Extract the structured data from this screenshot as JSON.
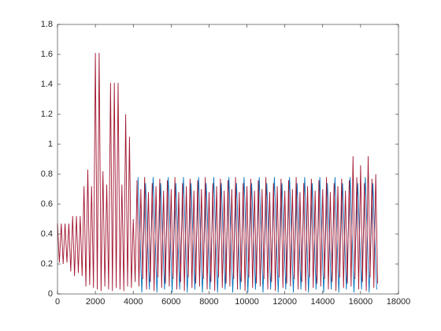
{
  "chart_data": {
    "type": "line",
    "xlim": [
      0,
      18000
    ],
    "xticks": [
      0,
      2000,
      4000,
      6000,
      8000,
      10000,
      12000,
      14000,
      16000,
      18000
    ],
    "ylim": [
      0,
      1.8
    ],
    "yticks": [
      0,
      0.2,
      0.4,
      0.6,
      0.8,
      1,
      1.2,
      1.4,
      1.6,
      1.8
    ],
    "series": [
      {
        "color": "#0072bd",
        "x": [
          4250,
          4450,
          4650,
          4850,
          5050,
          5250,
          5450,
          5650,
          5850,
          6050,
          6250,
          6450,
          6650,
          6850,
          7050,
          7250,
          7450,
          7650,
          7850,
          8050,
          8250,
          8450,
          8650,
          8850,
          9050,
          9250,
          9450,
          9650,
          9850,
          10050,
          10250,
          10450,
          10650,
          10850,
          11050,
          11250,
          11450,
          11650,
          11850,
          12050,
          12250,
          12450,
          12650,
          12850,
          13050,
          13250,
          13450,
          13650,
          13850,
          14050,
          14250,
          14450,
          14650,
          14850,
          15050,
          15250,
          15450,
          15650,
          15850,
          16050,
          16250,
          16450,
          16650,
          16850
        ],
        "values": [
          0.78,
          0.01,
          0.74,
          0.03,
          0.78,
          0.01,
          0.74,
          0.03,
          0.78,
          0.01,
          0.74,
          0.03,
          0.78,
          0.01,
          0.74,
          0.03,
          0.78,
          0.01,
          0.74,
          0.03,
          0.78,
          0.01,
          0.74,
          0.03,
          0.78,
          0.01,
          0.74,
          0.03,
          0.78,
          0.01,
          0.74,
          0.03,
          0.78,
          0.01,
          0.74,
          0.03,
          0.78,
          0.01,
          0.74,
          0.03,
          0.78,
          0.01,
          0.74,
          0.03,
          0.78,
          0.01,
          0.74,
          0.03,
          0.78,
          0.01,
          0.74,
          0.03,
          0.78,
          0.01,
          0.74,
          0.03,
          0.78,
          0.01,
          0.74,
          0.03,
          0.78,
          0.01,
          0.74,
          0.03
        ]
      },
      {
        "color": "#a2142f",
        "x": [
          0,
          100,
          200,
          300,
          400,
          500,
          600,
          700,
          800,
          900,
          1000,
          1100,
          1200,
          1300,
          1400,
          1500,
          1600,
          1700,
          1800,
          1900,
          2000,
          2100,
          2200,
          2300,
          2400,
          2500,
          2600,
          2700,
          2800,
          2900,
          3000,
          3100,
          3200,
          3300,
          3400,
          3500,
          3600,
          3700,
          3800,
          3900,
          4000,
          4100,
          4200,
          4300,
          4400,
          4500,
          4600,
          4700,
          4800,
          4900,
          5000,
          5100,
          5200,
          5300,
          5400,
          5500,
          5600,
          5700,
          5800,
          5900,
          6000,
          6100,
          6200,
          6300,
          6400,
          6500,
          6600,
          6700,
          6800,
          6900,
          7000,
          7100,
          7200,
          7300,
          7400,
          7500,
          7600,
          7700,
          7800,
          7900,
          8000,
          8100,
          8200,
          8300,
          8400,
          8500,
          8600,
          8700,
          8800,
          8900,
          9000,
          9100,
          9200,
          9300,
          9400,
          9500,
          9600,
          9700,
          9800,
          9900,
          10000,
          10100,
          10200,
          10300,
          10400,
          10500,
          10600,
          10700,
          10800,
          10900,
          11000,
          11100,
          11200,
          11300,
          11400,
          11500,
          11600,
          11700,
          11800,
          11900,
          12000,
          12100,
          12200,
          12300,
          12400,
          12500,
          12600,
          12700,
          12800,
          12900,
          13000,
          13100,
          13200,
          13300,
          13400,
          13500,
          13600,
          13700,
          13800,
          13900,
          14000,
          14100,
          14200,
          14300,
          14400,
          14500,
          14600,
          14700,
          14800,
          14900,
          15000,
          15100,
          15200,
          15300,
          15400,
          15500,
          15600,
          15700,
          15800,
          15900,
          16000,
          16100,
          16200,
          16300,
          16400,
          16500,
          16600,
          16700,
          16800,
          16900
        ],
        "values": [
          0.47,
          0.21,
          0.47,
          0.2,
          0.47,
          0.21,
          0.47,
          0.15,
          0.52,
          0.12,
          0.52,
          0.14,
          0.52,
          0.12,
          0.72,
          0.05,
          0.83,
          0.06,
          0.72,
          0.04,
          1.61,
          0.03,
          1.61,
          0.02,
          0.82,
          0.05,
          0.73,
          0.03,
          1.41,
          0.02,
          1.41,
          0.04,
          1.41,
          0.03,
          0.73,
          0.02,
          1.2,
          0.05,
          1.05,
          0.04,
          0.5,
          0.08,
          0.76,
          0.05,
          0.7,
          0.1,
          0.78,
          0.03,
          0.68,
          0.08,
          0.74,
          0.02,
          0.72,
          0.11,
          0.77,
          0.04,
          0.69,
          0.07,
          0.76,
          0.05,
          0.7,
          0.1,
          0.78,
          0.03,
          0.68,
          0.08,
          0.74,
          0.02,
          0.72,
          0.11,
          0.77,
          0.04,
          0.69,
          0.07,
          0.76,
          0.05,
          0.7,
          0.1,
          0.78,
          0.03,
          0.68,
          0.08,
          0.74,
          0.02,
          0.72,
          0.11,
          0.77,
          0.04,
          0.69,
          0.07,
          0.76,
          0.05,
          0.7,
          0.1,
          0.78,
          0.03,
          0.68,
          0.08,
          0.74,
          0.02,
          0.72,
          0.11,
          0.77,
          0.04,
          0.69,
          0.07,
          0.76,
          0.05,
          0.7,
          0.1,
          0.78,
          0.03,
          0.68,
          0.08,
          0.74,
          0.02,
          0.72,
          0.11,
          0.77,
          0.04,
          0.69,
          0.07,
          0.76,
          0.05,
          0.7,
          0.1,
          0.78,
          0.03,
          0.68,
          0.08,
          0.74,
          0.02,
          0.72,
          0.11,
          0.77,
          0.04,
          0.69,
          0.07,
          0.76,
          0.05,
          0.7,
          0.1,
          0.78,
          0.03,
          0.68,
          0.08,
          0.74,
          0.02,
          0.72,
          0.11,
          0.77,
          0.04,
          0.69,
          0.07,
          0.76,
          0.05,
          0.92,
          0.1,
          0.78,
          0.03,
          0.86,
          0.08,
          0.74,
          0.02,
          0.92,
          0.11,
          0.77,
          0.04,
          0.8,
          0.07
        ]
      }
    ]
  }
}
